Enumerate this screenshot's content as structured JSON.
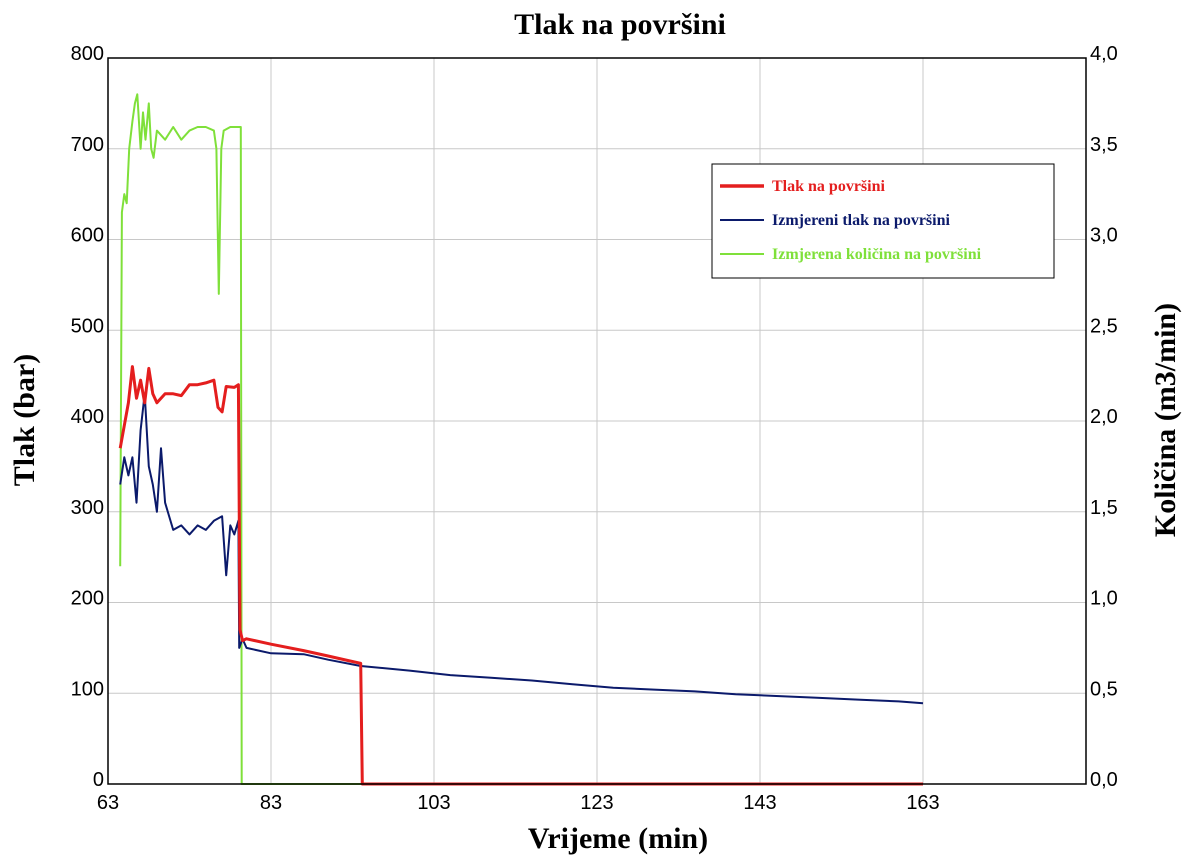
{
  "chart_data": {
    "type": "line",
    "title": "Tlak na površini",
    "xlabel": "Vrijeme (min)",
    "ylabel": "Tlak (bar)",
    "y2label": "Količina (m3/min)",
    "xlim": [
      63,
      183
    ],
    "ylim": [
      0,
      800
    ],
    "y2lim": [
      0,
      4
    ],
    "x_ticks": [
      "63",
      "83",
      "103",
      "123",
      "143",
      "163"
    ],
    "y_ticks": [
      "0",
      "100",
      "200",
      "300",
      "400",
      "500",
      "600",
      "700",
      "800"
    ],
    "y2_ticks": [
      "0,0",
      "0,5",
      "1,0",
      "1,5",
      "2,0",
      "2,5",
      "3,0",
      "3,5",
      "4,0"
    ],
    "grid": true,
    "legend_position": "top-right",
    "series": [
      {
        "name": "Tlak na površini",
        "color": "#e41e1e",
        "axis": "left",
        "points": [
          [
            64.5,
            370
          ],
          [
            65,
            395
          ],
          [
            65.5,
            420
          ],
          [
            66,
            460
          ],
          [
            66.5,
            425
          ],
          [
            67,
            445
          ],
          [
            67.5,
            420
          ],
          [
            68,
            458
          ],
          [
            68.5,
            430
          ],
          [
            69,
            420
          ],
          [
            70,
            430
          ],
          [
            71,
            430
          ],
          [
            72,
            428
          ],
          [
            73,
            440
          ],
          [
            74,
            440
          ],
          [
            75,
            442
          ],
          [
            76,
            445
          ],
          [
            76.5,
            415
          ],
          [
            77,
            410
          ],
          [
            77.5,
            438
          ],
          [
            78.5,
            437
          ],
          [
            79,
            440
          ],
          [
            79.2,
            170
          ],
          [
            79.5,
            158
          ],
          [
            80,
            160
          ],
          [
            83,
            154
          ],
          [
            87,
            147
          ],
          [
            90,
            141
          ],
          [
            92.5,
            136
          ],
          [
            94,
            133
          ],
          [
            94.2,
            0
          ],
          [
            95,
            0
          ],
          [
            163,
            0
          ]
        ]
      },
      {
        "name": "Izmjereni tlak na površini",
        "color": "#0b1a6b",
        "axis": "left",
        "points": [
          [
            64.5,
            330
          ],
          [
            65,
            360
          ],
          [
            65.5,
            340
          ],
          [
            66,
            360
          ],
          [
            66.5,
            310
          ],
          [
            67,
            390
          ],
          [
            67.5,
            430
          ],
          [
            68,
            350
          ],
          [
            68.5,
            330
          ],
          [
            69,
            300
          ],
          [
            69.5,
            370
          ],
          [
            70,
            310
          ],
          [
            71,
            280
          ],
          [
            72,
            285
          ],
          [
            73,
            275
          ],
          [
            74,
            285
          ],
          [
            75,
            280
          ],
          [
            76,
            290
          ],
          [
            77,
            295
          ],
          [
            77.5,
            230
          ],
          [
            78,
            285
          ],
          [
            78.5,
            275
          ],
          [
            79,
            290
          ],
          [
            79.1,
            150
          ],
          [
            79.5,
            160
          ],
          [
            80,
            150
          ],
          [
            83,
            144
          ],
          [
            87,
            143
          ],
          [
            90,
            137
          ],
          [
            94,
            130
          ],
          [
            100,
            125
          ],
          [
            105,
            120
          ],
          [
            110,
            117
          ],
          [
            115,
            114
          ],
          [
            120,
            110
          ],
          [
            125,
            106
          ],
          [
            130,
            104
          ],
          [
            135,
            102
          ],
          [
            140,
            99
          ],
          [
            145,
            97
          ],
          [
            150,
            95
          ],
          [
            155,
            93
          ],
          [
            160,
            91
          ],
          [
            163,
            89
          ]
        ]
      },
      {
        "name": "Izmjerena količina na površini",
        "color": "#7fe03a",
        "axis": "right",
        "points": [
          [
            64.5,
            1.2
          ],
          [
            64.7,
            3.15
          ],
          [
            65,
            3.25
          ],
          [
            65.3,
            3.2
          ],
          [
            65.6,
            3.5
          ],
          [
            66,
            3.65
          ],
          [
            66.3,
            3.75
          ],
          [
            66.6,
            3.8
          ],
          [
            67,
            3.5
          ],
          [
            67.3,
            3.7
          ],
          [
            67.6,
            3.55
          ],
          [
            68,
            3.75
          ],
          [
            68.3,
            3.5
          ],
          [
            68.6,
            3.45
          ],
          [
            69,
            3.6
          ],
          [
            70,
            3.55
          ],
          [
            71,
            3.62
          ],
          [
            72,
            3.55
          ],
          [
            73,
            3.6
          ],
          [
            74,
            3.62
          ],
          [
            75,
            3.62
          ],
          [
            76,
            3.6
          ],
          [
            76.3,
            3.5
          ],
          [
            76.6,
            2.7
          ],
          [
            76.9,
            3.5
          ],
          [
            77.2,
            3.6
          ],
          [
            78,
            3.62
          ],
          [
            79,
            3.62
          ],
          [
            79.3,
            3.62
          ],
          [
            79.4,
            0
          ],
          [
            80,
            0
          ],
          [
            163,
            0
          ]
        ]
      }
    ]
  }
}
